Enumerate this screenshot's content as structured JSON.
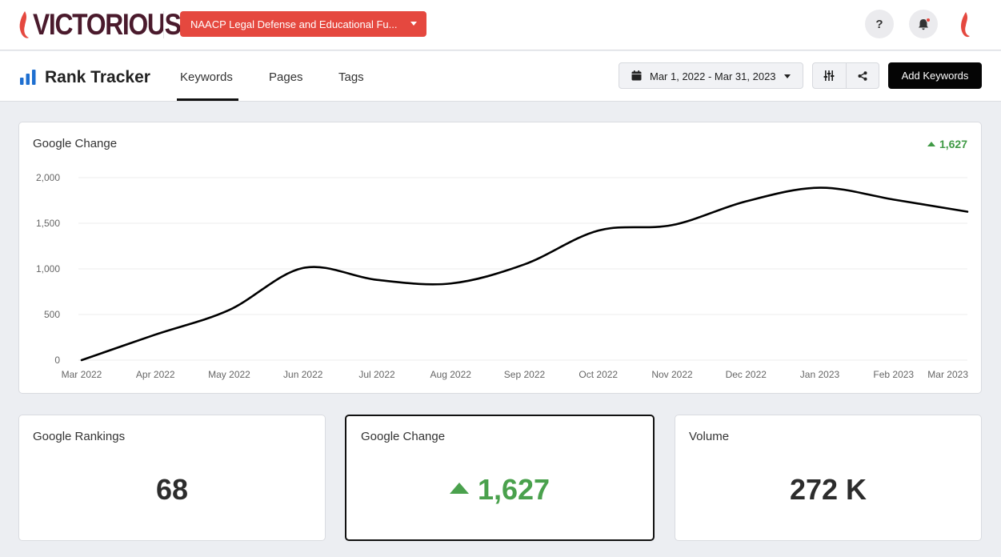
{
  "brand": {
    "name": "VICTORIOUS",
    "color": "#4a1a2c",
    "accent": "#e5483f"
  },
  "client_select": {
    "label": "NAACP Legal Defense and Educational Fu..."
  },
  "top_icons": {
    "help": "?",
    "help_icon": "question-icon",
    "bell_icon": "bell-icon"
  },
  "header": {
    "title": "Rank Tracker",
    "tabs": [
      {
        "label": "Keywords",
        "active": true
      },
      {
        "label": "Pages",
        "active": false
      },
      {
        "label": "Tags",
        "active": false
      }
    ],
    "date_range": "Mar 1, 2022 - Mar 31, 2023",
    "add_button": "Add Keywords"
  },
  "chart_card": {
    "title": "Google Change",
    "change": "1,627"
  },
  "chart_data": {
    "type": "line",
    "x": [
      "Mar 2022",
      "Apr 2022",
      "May 2022",
      "Jun 2022",
      "Jul 2022",
      "Aug 2022",
      "Sep 2022",
      "Oct 2022",
      "Nov 2022",
      "Dec 2022",
      "Jan 2023",
      "Feb 2023",
      "Mar 2023"
    ],
    "series": [
      {
        "values": [
          0,
          280,
          550,
          1010,
          880,
          840,
          1050,
          1420,
          1480,
          1740,
          1890,
          1760,
          1627
        ]
      }
    ],
    "yticks": [
      "0",
      "500",
      "1,000",
      "1,500",
      "2,000"
    ],
    "ylim": [
      0,
      2000
    ],
    "grid": true,
    "line_color": "#000000"
  },
  "stats": [
    {
      "title": "Google Rankings",
      "value": "68"
    },
    {
      "title": "Google Change",
      "value": "1,627",
      "direction": "up",
      "color": "#4aa14d"
    },
    {
      "title": "Volume",
      "value": "272 K"
    }
  ]
}
